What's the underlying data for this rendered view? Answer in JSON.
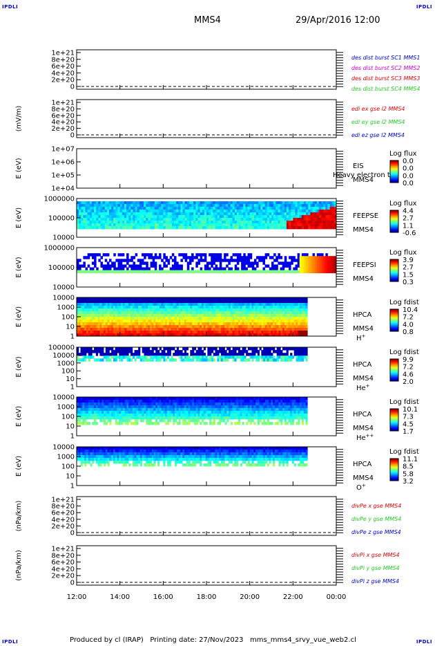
{
  "corners": {
    "label": "IPDLI"
  },
  "header": {
    "spacecraft": "MMS4",
    "datetime": "29/Apr/2016 12:00"
  },
  "footer": {
    "text": "Produced by cl (IRAP)   Printing date: 27/Nov/2023   mms_mms4_srvy_vue_web2.cl"
  },
  "colors": {
    "blue": "#0000cc",
    "magenta": "#cc00cc",
    "red": "#dd0000",
    "green": "#22cc22"
  },
  "chart_data": {
    "type": "heatmap",
    "xticks": [
      "12:00",
      "14:00",
      "16:00",
      "18:00",
      "20:00",
      "22:00",
      "00:00"
    ],
    "panels": [
      {
        "kind": "line",
        "ylabel": "",
        "yticks": [
          "1e+21",
          "8e+20",
          "6e+20",
          "4e+20",
          "2e+20",
          "0"
        ],
        "series": [
          {
            "name": "des dist burst SC1 MMS1",
            "color": "#0000cc"
          },
          {
            "name": "des dist burst SC2 MMS2",
            "color": "#cc00cc"
          },
          {
            "name": "des dist burst SC3 MMS3",
            "color": "#dd0000"
          },
          {
            "name": "des dist burst SC4 MMS4",
            "color": "#22cc22"
          }
        ]
      },
      {
        "kind": "line",
        "ylabel": "(mV/m)",
        "yticks": [
          "1e+21",
          "8e+20",
          "6e+20",
          "4e+20",
          "2e+20",
          "0"
        ],
        "series": [
          {
            "name": "edi ex gse l2 MMS4",
            "color": "#dd0000"
          },
          {
            "name": "edi ey gse l2 MMS4",
            "color": "#22cc22"
          },
          {
            "name": "edi ez gse l2 MMS4",
            "color": "#0000cc"
          }
        ]
      },
      {
        "kind": "spec",
        "ylabel": "E (eV)",
        "yticks": [
          "1e+07",
          "1e+06",
          "1e+05",
          "1e+04"
        ],
        "instrument": "EIS",
        "overlay": "Heavy electron to",
        "sc": "MMS4",
        "species": "",
        "cbar_title": "Log flux",
        "cbar_ticks": [
          "0.0",
          "0.0",
          "0.0",
          "0.0"
        ]
      },
      {
        "kind": "spec",
        "ylabel": "E (eV)",
        "yticks": [
          "1000000",
          "100000",
          "10000"
        ],
        "instrument": "FEEPSE",
        "sc": "MMS4",
        "species": "",
        "cbar_title": "Log flux",
        "cbar_ticks": [
          "4.4",
          "2.7",
          "1.1",
          "-0.6"
        ],
        "data_end": "00:00"
      },
      {
        "kind": "spec",
        "ylabel": "E (eV)",
        "yticks": [
          "1000000",
          "100000",
          "10000"
        ],
        "instrument": "FEEPSI",
        "sc": "MMS4",
        "species": "",
        "cbar_title": "Log flux",
        "cbar_ticks": [
          "3.9",
          "2.7",
          "1.5",
          "0.3"
        ],
        "data_end": "00:00"
      },
      {
        "kind": "spec",
        "ylabel": "E (eV)",
        "yticks": [
          "10000",
          "1000",
          "100",
          "10",
          "1"
        ],
        "instrument": "HPCA",
        "sc": "MMS4",
        "species": "H",
        "species_sup": "+",
        "cbar_title": "Log fdist",
        "cbar_ticks": [
          "10.4",
          "7.2",
          "4.0",
          "0.8"
        ],
        "data_end": "22:40"
      },
      {
        "kind": "spec",
        "ylabel": "E (eV)",
        "yticks": [
          "100000",
          "10000",
          "1000",
          "100",
          "10",
          "1"
        ],
        "instrument": "HPCA",
        "sc": "MMS4",
        "species": "He",
        "species_sup": "+",
        "cbar_title": "Log fdist",
        "cbar_ticks": [
          "9.9",
          "7.2",
          "4.6",
          "2.0"
        ],
        "data_end": "22:40"
      },
      {
        "kind": "spec",
        "ylabel": "E (eV)",
        "yticks": [
          "10000",
          "1000",
          "100",
          "10",
          "1"
        ],
        "instrument": "HPCA",
        "sc": "MMS4",
        "species": "He",
        "species_sup": "++",
        "cbar_title": "Log fdist",
        "cbar_ticks": [
          "10.1",
          "7.3",
          "4.5",
          "1.7"
        ],
        "data_end": "22:40"
      },
      {
        "kind": "spec",
        "ylabel": "E (eV)",
        "yticks": [
          "10000",
          "1000",
          "100",
          "10",
          "1"
        ],
        "instrument": "HPCA",
        "sc": "MMS4",
        "species": "O",
        "species_sup": "+",
        "cbar_title": "Log fdist",
        "cbar_ticks": [
          "11.1",
          "8.5",
          "5.8",
          "3.2"
        ],
        "data_end": "22:40"
      },
      {
        "kind": "line",
        "ylabel": "(nPa/km)",
        "yticks": [
          "1e+21",
          "8e+20",
          "6e+20",
          "4e+20",
          "2e+20",
          "0"
        ],
        "series": [
          {
            "name": "divPe x gse MMS4",
            "color": "#dd0000"
          },
          {
            "name": "divPe y gse MMS4",
            "color": "#22cc22"
          },
          {
            "name": "divPe z gse MMS4",
            "color": "#0000cc"
          }
        ]
      },
      {
        "kind": "line",
        "ylabel": "(nPa/km)",
        "yticks": [
          "1e+21",
          "8e+20",
          "6e+20",
          "4e+20",
          "2e+20",
          "0"
        ],
        "series": [
          {
            "name": "divPi x gse MMS4",
            "color": "#dd0000"
          },
          {
            "name": "divPi y gse MMS4",
            "color": "#22cc22"
          },
          {
            "name": "divPi z gse MMS4",
            "color": "#0000cc"
          }
        ]
      }
    ]
  }
}
